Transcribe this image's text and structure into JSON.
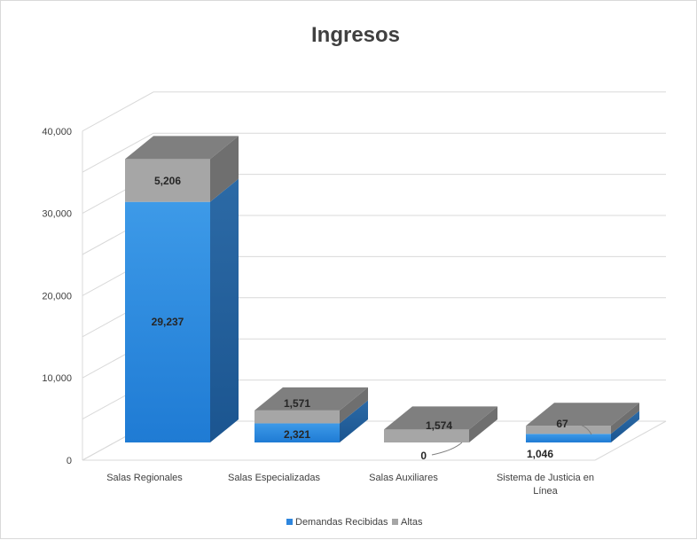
{
  "chart_data": {
    "type": "bar",
    "stacked": true,
    "three_d": true,
    "title": "Ingresos",
    "categories": [
      [
        "Salas Regionales"
      ],
      [
        "Salas Especializadas"
      ],
      [
        "Salas Auxiliares"
      ],
      [
        "Sistema de Justicia en",
        "Línea"
      ]
    ],
    "series": [
      {
        "name": "Demandas Recibidas",
        "values": [
          29237,
          2321,
          0,
          1046
        ],
        "labels": [
          "29,237",
          "2,321",
          "0",
          "1,046"
        ],
        "color": "#2e86de"
      },
      {
        "name": "Altas",
        "values": [
          5206,
          1571,
          1574,
          67
        ],
        "labels": [
          "5,206",
          "1,571",
          "1,574",
          "67"
        ],
        "color": "#a6a6a6"
      }
    ],
    "y_ticks": [
      "0",
      "10,000",
      "20,000",
      "30,000",
      "40,000"
    ],
    "ylim": [
      0,
      40000
    ],
    "grid": true,
    "legend": "bottom"
  }
}
